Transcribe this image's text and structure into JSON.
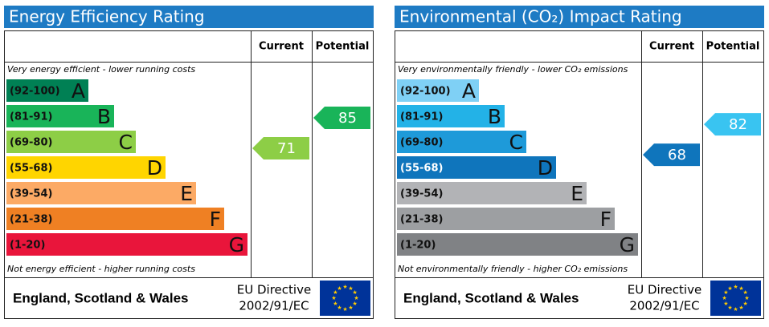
{
  "panels": [
    {
      "title": "Energy Efficiency Rating",
      "headers": [
        "Current",
        "Potential"
      ],
      "top_note": "Very energy efficient - lower running costs",
      "bottom_note": "Not energy efficient - higher running costs",
      "bands": [
        {
          "range": "(92-100)",
          "letter": "A",
          "color": "#008054"
        },
        {
          "range": "(81-91)",
          "letter": "B",
          "color": "#19b459"
        },
        {
          "range": "(69-80)",
          "letter": "C",
          "color": "#8dce46"
        },
        {
          "range": "(55-68)",
          "letter": "D",
          "color": "#ffd500"
        },
        {
          "range": "(39-54)",
          "letter": "E",
          "color": "#fcaa65"
        },
        {
          "range": "(21-38)",
          "letter": "F",
          "color": "#ef8023"
        },
        {
          "range": "(1-20)",
          "letter": "G",
          "color": "#e9153b"
        }
      ],
      "current": 71,
      "current_color": "#8dce46",
      "potential": 85,
      "potential_color": "#19b459",
      "footer": {
        "region": "England, Scotland & Wales",
        "directive": "EU Directive",
        "code": "2002/91/EC"
      }
    },
    {
      "title": "Environmental (CO₂) Impact Rating",
      "headers": [
        "Current",
        "Potential"
      ],
      "top_note": "Very environmentally friendly - lower CO₂ emissions",
      "bottom_note": "Not environmentally friendly - higher CO₂ emissions",
      "bands": [
        {
          "range": "(92-100)",
          "letter": "A",
          "color": "#7fd0f5"
        },
        {
          "range": "(81-91)",
          "letter": "B",
          "color": "#23b2e7"
        },
        {
          "range": "(69-80)",
          "letter": "C",
          "color": "#1e9ad9"
        },
        {
          "range": "(55-68)",
          "letter": "D",
          "color": "#0f75bc"
        },
        {
          "range": "(39-54)",
          "letter": "E",
          "color": "#b2b3b6"
        },
        {
          "range": "(21-38)",
          "letter": "F",
          "color": "#9d9fa2"
        },
        {
          "range": "(1-20)",
          "letter": "G",
          "color": "#808285"
        }
      ],
      "current": 68,
      "current_color": "#0f75bc",
      "potential": 82,
      "potential_color": "#39c4f1",
      "footer": {
        "region": "England, Scotland & Wales",
        "directive": "EU Directive",
        "code": "2002/91/EC"
      }
    }
  ]
}
